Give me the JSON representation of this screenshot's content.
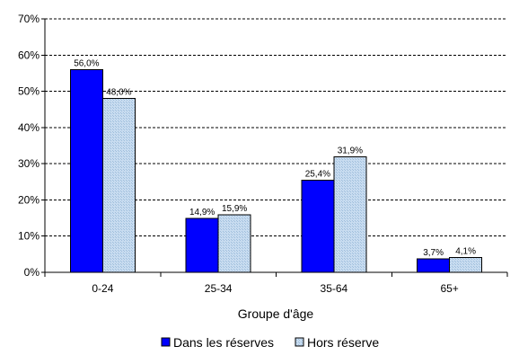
{
  "chart_data": {
    "type": "bar",
    "title": "",
    "xlabel": "Groupe d'âge",
    "ylabel": "",
    "categories": [
      "0-24",
      "25-34",
      "35-64",
      "65+"
    ],
    "series": [
      {
        "name": "Dans les réserves",
        "values": [
          56.0,
          14.9,
          25.4,
          3.7
        ],
        "labels": [
          "56,0%",
          "14,9%",
          "25,4%",
          "3,7%"
        ],
        "color": "#0000ff"
      },
      {
        "name": "Hors réserve",
        "values": [
          48.0,
          15.9,
          31.9,
          4.1
        ],
        "labels": [
          "48,0%",
          "15,9%",
          "31,9%",
          "4,1%"
        ],
        "color": "#c8dcf0"
      }
    ],
    "ylim": [
      0,
      70
    ],
    "yticks": [
      0,
      10,
      20,
      30,
      40,
      50,
      60,
      70
    ],
    "ytick_labels": [
      "0%",
      "10%",
      "20%",
      "30%",
      "40%",
      "50%",
      "60%",
      "70%"
    ],
    "grid": true,
    "legend_position": "bottom-center"
  }
}
